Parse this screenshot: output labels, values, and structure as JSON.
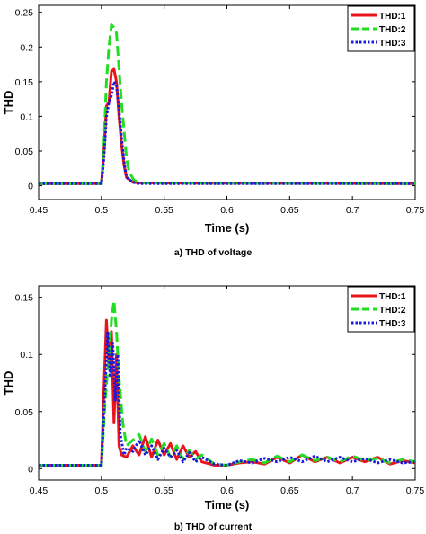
{
  "chart_data": [
    {
      "type": "line",
      "caption": "a) THD of voltage",
      "xlabel": "Time (s)",
      "ylabel": "THD",
      "xlim": [
        0.45,
        0.75
      ],
      "ylim": [
        -0.02,
        0.26
      ],
      "xticks": [
        "0.45",
        "0.5",
        "0.55",
        "0.6",
        "0.65",
        "0.7",
        "0.75"
      ],
      "yticks": [
        "0",
        "0.05",
        "0.1",
        "0.15",
        "0.2",
        "0.25"
      ],
      "legend_position": "top-right",
      "series": [
        {
          "name": "THD:1",
          "color": "#e8141c",
          "style": "solid",
          "x": [
            0.45,
            0.5,
            0.502,
            0.504,
            0.506,
            0.508,
            0.51,
            0.512,
            0.514,
            0.516,
            0.518,
            0.52,
            0.525,
            0.53,
            0.75
          ],
          "y": [
            0.003,
            0.003,
            0.05,
            0.115,
            0.12,
            0.165,
            0.168,
            0.15,
            0.1,
            0.06,
            0.03,
            0.012,
            0.005,
            0.004,
            0.003
          ]
        },
        {
          "name": "THD:2",
          "color": "#22dd22",
          "style": "dashed",
          "x": [
            0.45,
            0.5,
            0.502,
            0.504,
            0.506,
            0.508,
            0.51,
            0.512,
            0.514,
            0.516,
            0.518,
            0.52,
            0.522,
            0.526,
            0.53,
            0.75
          ],
          "y": [
            0.003,
            0.003,
            0.06,
            0.15,
            0.2,
            0.232,
            0.228,
            0.22,
            0.17,
            0.12,
            0.08,
            0.04,
            0.02,
            0.008,
            0.004,
            0.003
          ]
        },
        {
          "name": "THD:3",
          "color": "#1a1adc",
          "style": "dotted",
          "x": [
            0.45,
            0.5,
            0.502,
            0.504,
            0.506,
            0.508,
            0.51,
            0.512,
            0.514,
            0.516,
            0.518,
            0.52,
            0.525,
            0.53,
            0.75
          ],
          "y": [
            0.003,
            0.003,
            0.04,
            0.1,
            0.12,
            0.13,
            0.15,
            0.145,
            0.11,
            0.07,
            0.035,
            0.012,
            0.005,
            0.003,
            0.003
          ]
        }
      ]
    },
    {
      "type": "line",
      "caption": "b) THD of current",
      "xlabel": "Time (s)",
      "ylabel": "THD",
      "xlim": [
        0.45,
        0.75
      ],
      "ylim": [
        -0.01,
        0.16
      ],
      "xticks": [
        "0.45",
        "0.5",
        "0.55",
        "0.6",
        "0.65",
        "0.7",
        "0.75"
      ],
      "yticks": [
        "0",
        "0.05",
        "0.1",
        "0.15"
      ],
      "legend_position": "top-right",
      "series": [
        {
          "name": "THD:1",
          "color": "#e8141c",
          "style": "solid",
          "x": [
            0.45,
            0.5,
            0.502,
            0.504,
            0.506,
            0.508,
            0.51,
            0.512,
            0.514,
            0.516,
            0.52,
            0.525,
            0.53,
            0.535,
            0.54,
            0.545,
            0.55,
            0.555,
            0.56,
            0.565,
            0.57,
            0.575,
            0.58,
            0.59,
            0.6,
            0.61,
            0.62,
            0.63,
            0.64,
            0.65,
            0.66,
            0.67,
            0.68,
            0.69,
            0.7,
            0.71,
            0.72,
            0.73,
            0.74,
            0.75
          ],
          "y": [
            0.003,
            0.003,
            0.07,
            0.13,
            0.09,
            0.12,
            0.04,
            0.1,
            0.02,
            0.012,
            0.01,
            0.02,
            0.012,
            0.028,
            0.01,
            0.025,
            0.012,
            0.022,
            0.008,
            0.02,
            0.01,
            0.015,
            0.006,
            0.003,
            0.003,
            0.005,
            0.006,
            0.004,
            0.01,
            0.005,
            0.012,
            0.006,
            0.01,
            0.005,
            0.01,
            0.006,
            0.01,
            0.004,
            0.007,
            0.005
          ]
        },
        {
          "name": "THD:2",
          "color": "#22dd22",
          "style": "dashed",
          "x": [
            0.45,
            0.5,
            0.503,
            0.506,
            0.508,
            0.51,
            0.512,
            0.514,
            0.517,
            0.52,
            0.525,
            0.53,
            0.535,
            0.54,
            0.545,
            0.55,
            0.555,
            0.56,
            0.565,
            0.57,
            0.575,
            0.58,
            0.59,
            0.6,
            0.61,
            0.62,
            0.63,
            0.64,
            0.65,
            0.66,
            0.67,
            0.68,
            0.69,
            0.7,
            0.71,
            0.72,
            0.73,
            0.74,
            0.75
          ],
          "y": [
            0.003,
            0.003,
            0.06,
            0.1,
            0.13,
            0.147,
            0.12,
            0.08,
            0.04,
            0.02,
            0.025,
            0.03,
            0.015,
            0.026,
            0.012,
            0.022,
            0.01,
            0.02,
            0.008,
            0.016,
            0.008,
            0.012,
            0.004,
            0.003,
            0.006,
            0.008,
            0.005,
            0.011,
            0.006,
            0.012,
            0.007,
            0.01,
            0.006,
            0.011,
            0.007,
            0.009,
            0.005,
            0.008,
            0.006
          ]
        },
        {
          "name": "THD:3",
          "color": "#1a1adc",
          "style": "dotted",
          "x": [
            0.45,
            0.5,
            0.502,
            0.505,
            0.507,
            0.509,
            0.511,
            0.513,
            0.515,
            0.518,
            0.52,
            0.525,
            0.53,
            0.535,
            0.54,
            0.545,
            0.55,
            0.555,
            0.56,
            0.565,
            0.57,
            0.575,
            0.58,
            0.59,
            0.6,
            0.61,
            0.62,
            0.63,
            0.64,
            0.65,
            0.66,
            0.67,
            0.68,
            0.69,
            0.7,
            0.71,
            0.72,
            0.73,
            0.74,
            0.75
          ],
          "y": [
            0.003,
            0.003,
            0.05,
            0.12,
            0.08,
            0.11,
            0.06,
            0.1,
            0.03,
            0.012,
            0.018,
            0.015,
            0.025,
            0.012,
            0.02,
            0.008,
            0.018,
            0.01,
            0.016,
            0.006,
            0.014,
            0.006,
            0.01,
            0.004,
            0.003,
            0.007,
            0.005,
            0.009,
            0.006,
            0.01,
            0.006,
            0.011,
            0.006,
            0.01,
            0.006,
            0.009,
            0.005,
            0.008,
            0.005,
            0.006
          ]
        }
      ]
    }
  ]
}
